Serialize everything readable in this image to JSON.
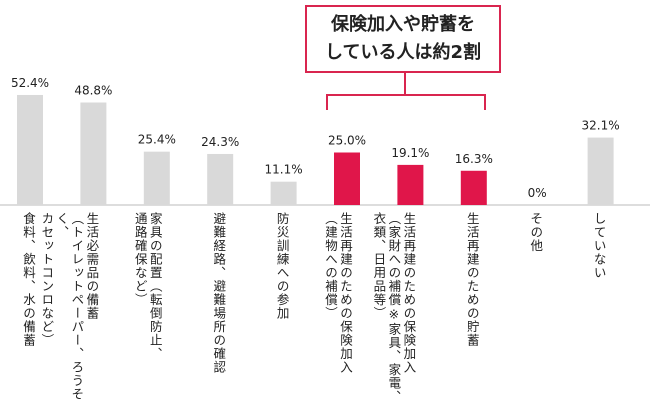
{
  "chart_data": {
    "type": "bar",
    "categories": [
      "食料、飲料、水の備蓄",
      "生活必需品の備蓄\n（トイレットペーパー、ろうそく、\nカセットコンロなど）",
      "家具の配置（転倒防止、\n通路確保など）",
      "避難経路、避難場所の確認",
      "防災訓練への参加",
      "生活再建のための保険加入\n（建物への補償）",
      "生活再建のための保険加入\n（家財への補償※家具、家電、\n衣類、日用品等）",
      "生活再建のための貯蓄",
      "その他",
      "していない"
    ],
    "values": [
      52.4,
      48.8,
      25.4,
      24.3,
      11.1,
      25.0,
      19.1,
      16.3,
      0,
      32.1
    ],
    "value_labels": [
      "52.4%",
      "48.8%",
      "25.4%",
      "24.3%",
      "11.1%",
      "25.0%",
      "19.1%",
      "16.3%",
      "0%",
      "32.1%"
    ],
    "colors": [
      "#d9d9d9",
      "#d9d9d9",
      "#d9d9d9",
      "#d9d9d9",
      "#d9d9d9",
      "#e0164a",
      "#e0164a",
      "#e0164a",
      "#d9d9d9",
      "#d9d9d9"
    ],
    "annotation": "保険加入や貯蓄を\nしている人は約2割"
  }
}
